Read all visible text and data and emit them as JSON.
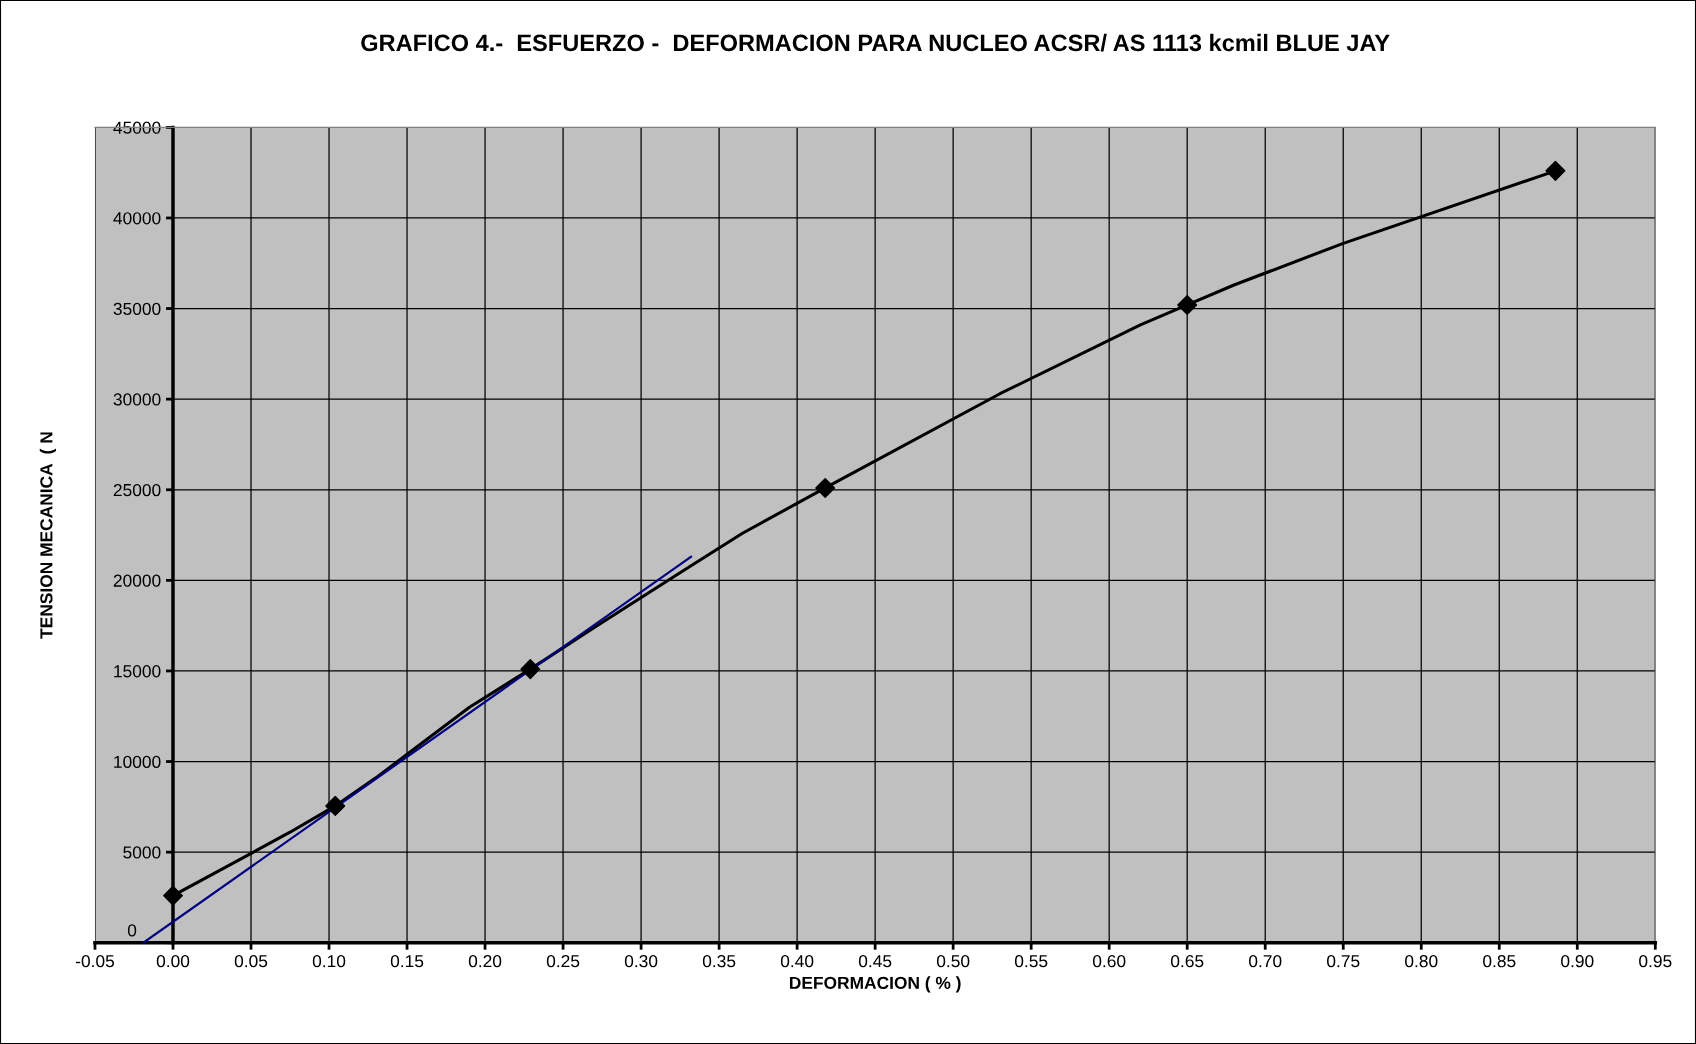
{
  "chart_data": {
    "type": "line",
    "title": "GRAFICO 4.-  ESFUERZO -  DEFORMACION PARA NUCLEO ACSR/ AS 1113 kcmil BLUE JAY",
    "xlabel": "DEFORMACION ( % )",
    "ylabel": "TENSION MECANICA  ( N",
    "series": [
      {
        "type": "line",
        "color": "#000000",
        "marker": "none",
        "x": [
          0,
          0.075,
          0.104,
          0.13,
          0.19,
          0.229,
          0.27,
          0.33,
          0.365,
          0.418,
          0.53,
          0.62,
          0.65,
          0.68,
          0.75,
          0.886
        ],
        "values": [
          2600,
          6100,
          7550,
          9100,
          13000,
          15100,
          17400,
          20700,
          22600,
          25100,
          30300,
          34100,
          35200,
          36300,
          38600,
          42600
        ]
      },
      {
        "type": "scatter",
        "color": "#000000",
        "marker": "diamond",
        "x": [
          0,
          0.104,
          0.229,
          0.418,
          0.65,
          0.886
        ],
        "values": [
          2600,
          7550,
          15100,
          25100,
          35200,
          42600
        ]
      },
      {
        "type": "line",
        "color": "#000080",
        "marker": "none",
        "x": [
          -0.019,
          0.332
        ],
        "values": [
          0,
          21300
        ]
      }
    ],
    "xlim": [
      -0.05,
      0.95
    ],
    "xticks": [
      {
        "value": -0.05,
        "label": "-0.05"
      },
      {
        "value": 0,
        "label": "0.00"
      },
      {
        "value": 0.05,
        "label": "0.05"
      },
      {
        "value": 0.1,
        "label": "0.10"
      },
      {
        "value": 0.15,
        "label": "0.15"
      },
      {
        "value": 0.2,
        "label": "0.20"
      },
      {
        "value": 0.25,
        "label": "0.25"
      },
      {
        "value": 0.3,
        "label": "0.30"
      },
      {
        "value": 0.35,
        "label": "0.35"
      },
      {
        "value": 0.4,
        "label": "0.40"
      },
      {
        "value": 0.45,
        "label": "0.45"
      },
      {
        "value": 0.5,
        "label": "0.50"
      },
      {
        "value": 0.55,
        "label": "0.55"
      },
      {
        "value": 0.6,
        "label": "0.60"
      },
      {
        "value": 0.65,
        "label": "0.65"
      },
      {
        "value": 0.7,
        "label": "0.70"
      },
      {
        "value": 0.75,
        "label": "0.75"
      },
      {
        "value": 0.8,
        "label": "0.80"
      },
      {
        "value": 0.85,
        "label": "0.85"
      },
      {
        "value": 0.9,
        "label": "0.90"
      },
      {
        "value": 0.95,
        "label": "0.95"
      }
    ],
    "ylim": [
      0,
      45000
    ],
    "yticks": [
      0,
      5000,
      10000,
      15000,
      20000,
      25000,
      30000,
      35000,
      40000,
      45000
    ],
    "grid": true
  }
}
